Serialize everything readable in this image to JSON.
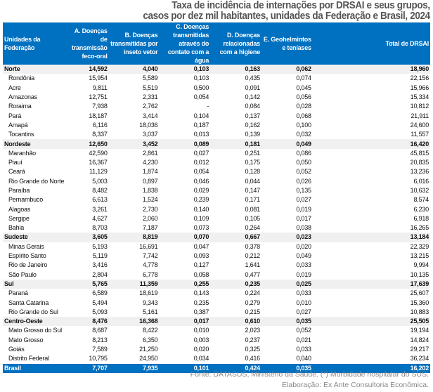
{
  "title": {
    "line1": "Taxa de incidência de internações por DRSAI e seus grupos,",
    "line2": "casos por dez mil habitantes, unidades da Federação e Brasil, 2024"
  },
  "columns": [
    "Unidades da Federação",
    "A. Doenças de transmissão feco-oral",
    "B. Doenças transmitidas por inseto vetor",
    "C. Doenças transmitidas através do contato com a água",
    "D. Doenças relacionadas com a higiene",
    "E. Geohelmintos e teníases",
    "Total de DRSAI"
  ],
  "rows": [
    {
      "type": "region",
      "cells": [
        "Norte",
        "14,592",
        "4,040",
        "0,103",
        "0,163",
        "0,062",
        "18,960"
      ]
    },
    {
      "type": "state",
      "cells": [
        "Rondônia",
        "15,954",
        "5,589",
        "0,103",
        "0,435",
        "0,074",
        "22,156"
      ]
    },
    {
      "type": "state",
      "cells": [
        "Acre",
        "9,811",
        "5,519",
        "0,500",
        "0,091",
        "0,045",
        "15,966"
      ]
    },
    {
      "type": "state",
      "cells": [
        "Amazonas",
        "12,751",
        "2,331",
        "0,054",
        "0,142",
        "0,056",
        "15,334"
      ]
    },
    {
      "type": "state",
      "cells": [
        "Roraima",
        "7,938",
        "2,762",
        "-",
        "0,084",
        "0,028",
        "10,812"
      ]
    },
    {
      "type": "state",
      "cells": [
        "Pará",
        "18,187",
        "3,414",
        "0,104",
        "0,137",
        "0,068",
        "21,911"
      ]
    },
    {
      "type": "state",
      "cells": [
        "Amapá",
        "6,116",
        "18,036",
        "0,187",
        "0,162",
        "0,100",
        "24,600"
      ]
    },
    {
      "type": "state",
      "cells": [
        "Tocantins",
        "8,337",
        "3,037",
        "0,013",
        "0,139",
        "0,032",
        "11,557"
      ]
    },
    {
      "type": "region",
      "cells": [
        "Nordeste",
        "12,650",
        "3,452",
        "0,089",
        "0,181",
        "0,049",
        "16,420"
      ]
    },
    {
      "type": "state",
      "cells": [
        "Maranhão",
        "42,590",
        "2,861",
        "0,027",
        "0,251",
        "0,086",
        "45,815"
      ]
    },
    {
      "type": "state",
      "cells": [
        "Piauí",
        "16,367",
        "4,230",
        "0,012",
        "0,175",
        "0,050",
        "20,835"
      ]
    },
    {
      "type": "state",
      "cells": [
        "Ceará",
        "11,129",
        "1,874",
        "0,054",
        "0,128",
        "0,052",
        "13,236"
      ]
    },
    {
      "type": "state",
      "cells": [
        "Rio Grande do Norte",
        "5,003",
        "0,897",
        "0,046",
        "0,044",
        "0,026",
        "6,016"
      ]
    },
    {
      "type": "state",
      "cells": [
        "Paraíba",
        "8,482",
        "1,838",
        "0,029",
        "0,147",
        "0,135",
        "10,632"
      ]
    },
    {
      "type": "state",
      "cells": [
        "Pernambuco",
        "6,613",
        "1,524",
        "0,239",
        "0,171",
        "0,027",
        "8,574"
      ]
    },
    {
      "type": "state",
      "cells": [
        "Alagoas",
        "3,261",
        "2,730",
        "0,140",
        "0,081",
        "0,019",
        "6,230"
      ]
    },
    {
      "type": "state",
      "cells": [
        "Sergipe",
        "4,627",
        "2,060",
        "0,109",
        "0,105",
        "0,017",
        "6,918"
      ]
    },
    {
      "type": "state",
      "cells": [
        "Bahia",
        "8,703",
        "7,187",
        "0,073",
        "0,264",
        "0,038",
        "16,265"
      ]
    },
    {
      "type": "region",
      "cells": [
        "Sudeste",
        "3,605",
        "8,819",
        "0,070",
        "0,667",
        "0,023",
        "13,184"
      ]
    },
    {
      "type": "state",
      "cells": [
        "Minas Gerais",
        "5,193",
        "16,691",
        "0,047",
        "0,378",
        "0,020",
        "22,329"
      ]
    },
    {
      "type": "state",
      "cells": [
        "Espírito Santo",
        "5,119",
        "7,742",
        "0,093",
        "0,212",
        "0,049",
        "13,215"
      ]
    },
    {
      "type": "state",
      "cells": [
        "Rio de Janeiro",
        "3,416",
        "4,778",
        "0,127",
        "1,641",
        "0,033",
        "9,994"
      ]
    },
    {
      "type": "state",
      "cells": [
        "São Paulo",
        "2,804",
        "6,778",
        "0,058",
        "0,477",
        "0,019",
        "10,135"
      ]
    },
    {
      "type": "region",
      "cells": [
        "Sul",
        "5,765",
        "11,359",
        "0,255",
        "0,235",
        "0,025",
        "17,639"
      ]
    },
    {
      "type": "state",
      "cells": [
        "Paraná",
        "6,589",
        "18,619",
        "0,143",
        "0,224",
        "0,033",
        "25,607"
      ]
    },
    {
      "type": "state",
      "cells": [
        "Santa Catarina",
        "5,494",
        "9,343",
        "0,235",
        "0,279",
        "0,010",
        "15,360"
      ]
    },
    {
      "type": "state",
      "cells": [
        "Rio Grande do Sul",
        "5,093",
        "5,161",
        "0,387",
        "0,215",
        "0,027",
        "10,883"
      ]
    },
    {
      "type": "region",
      "cells": [
        "Centro-Oeste",
        "8,476",
        "16,368",
        "0,017",
        "0,610",
        "0,035",
        "25,505"
      ]
    },
    {
      "type": "state",
      "cells": [
        "Mato Grosso do Sul",
        "8,687",
        "8,422",
        "0,010",
        "2,023",
        "0,052",
        "19,194"
      ]
    },
    {
      "type": "state",
      "cells": [
        "Mato Grosso",
        "8,213",
        "6,350",
        "0,003",
        "0,237",
        "0,021",
        "14,824"
      ]
    },
    {
      "type": "state",
      "cells": [
        "Goiás",
        "7,589",
        "21,250",
        "0,020",
        "0,325",
        "0,033",
        "29,217"
      ]
    },
    {
      "type": "state",
      "cells": [
        "Distrito Federal",
        "10,795",
        "24,950",
        "0,034",
        "0,416",
        "0,040",
        "36,234"
      ]
    },
    {
      "type": "total",
      "cells": [
        "Brasil",
        "7,707",
        "7,935",
        "0,101",
        "0,424",
        "0,035",
        "16,202"
      ]
    }
  ],
  "footer": {
    "source": "Fonte: DATASUS, Ministério da Saúde. (*) Morbidade hospitalar do SUS.",
    "credit": "Elaboração: Ex Ante Consultoria Econômica."
  },
  "colors": {
    "header": "#0070c0",
    "region_row": "#f0f0f0",
    "footer_text": "#888888"
  }
}
